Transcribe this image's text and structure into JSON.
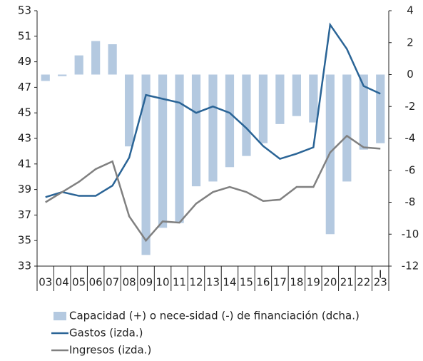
{
  "chart_data": {
    "type": "bar-line",
    "categories": [
      "03",
      "04",
      "05",
      "06",
      "07",
      "08",
      "09",
      "10",
      "11",
      "12",
      "13",
      "14",
      "15",
      "16",
      "17",
      "18",
      "19",
      "20",
      "21",
      "22",
      "23"
    ],
    "annotation": "I",
    "series": [
      {
        "name": "Capacidad (+) o nece-sidad (-) de financiación (dcha.)",
        "type": "bar",
        "axis": "y2",
        "color": "#b4c9e0",
        "values": [
          -0.4,
          -0.1,
          1.2,
          2.1,
          1.9,
          -4.5,
          -11.3,
          -9.6,
          -9.3,
          -7.0,
          -6.7,
          -5.8,
          -5.1,
          -4.3,
          -3.1,
          -2.6,
          -3.0,
          -10.0,
          -6.7,
          -4.7,
          -4.3
        ]
      },
      {
        "name": "Gastos (izda.)",
        "type": "line",
        "color": "#2a6496",
        "values": [
          38.4,
          38.8,
          38.5,
          38.5,
          39.3,
          41.5,
          46.4,
          46.1,
          45.8,
          45.0,
          45.5,
          45.0,
          43.8,
          42.4,
          41.4,
          41.8,
          42.3,
          51.9,
          50.0,
          47.1,
          46.5
        ]
      },
      {
        "name": "Ingresos (izda.)",
        "type": "line",
        "color": "#808080",
        "values": [
          38.0,
          38.8,
          39.6,
          40.6,
          41.2,
          36.9,
          35.0,
          36.5,
          36.4,
          37.9,
          38.8,
          39.2,
          38.8,
          38.1,
          38.2,
          39.2,
          39.2,
          41.9,
          43.2,
          42.3,
          42.2
        ]
      }
    ],
    "ylim": [
      33,
      53
    ],
    "yticks": [
      33,
      35,
      37,
      39,
      41,
      43,
      45,
      47,
      49,
      51,
      53
    ],
    "y2lim": [
      -12,
      4
    ],
    "y2ticks": [
      -12,
      -10,
      -8,
      -6,
      -4,
      -2,
      0,
      2,
      4
    ]
  }
}
